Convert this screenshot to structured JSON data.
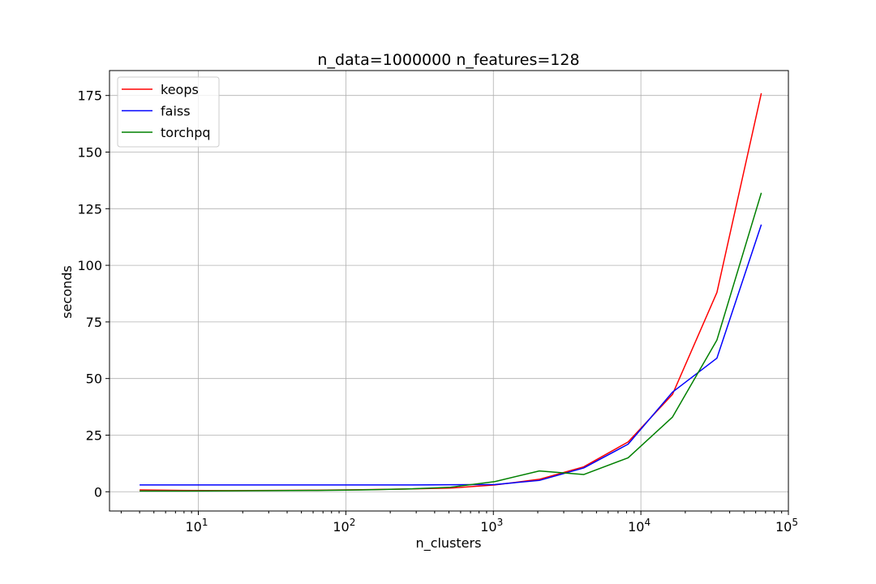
{
  "chart_data": {
    "type": "line",
    "title": "n_data=1000000 n_features=128",
    "xlabel": "n_clusters",
    "ylabel": "seconds",
    "xscale": "log",
    "xlim": [
      2.5,
      100000
    ],
    "ylim": [
      -8.5,
      186
    ],
    "grid": true,
    "legend_position": "top-left",
    "x": [
      4,
      8,
      16,
      32,
      64,
      128,
      256,
      512,
      1024,
      2048,
      4096,
      8192,
      16384,
      32768,
      65536
    ],
    "x_tick_labels": [
      {
        "base": "10",
        "exp": "1",
        "value": 10
      },
      {
        "base": "10",
        "exp": "2",
        "value": 100
      },
      {
        "base": "10",
        "exp": "3",
        "value": 1000
      },
      {
        "base": "10",
        "exp": "4",
        "value": 10000
      },
      {
        "base": "10",
        "exp": "5",
        "value": 100000
      }
    ],
    "y_ticks": [
      0,
      25,
      50,
      75,
      100,
      125,
      150,
      175
    ],
    "series": [
      {
        "name": "keops",
        "color": "#ff0000",
        "values": [
          0.8,
          0.6,
          0.5,
          0.6,
          0.7,
          0.9,
          1.2,
          1.6,
          3.0,
          5.5,
          11.0,
          22.0,
          43.0,
          88.0,
          176.0
        ]
      },
      {
        "name": "faiss",
        "color": "#0000ff",
        "values": [
          3.0,
          3.0,
          3.0,
          3.0,
          3.0,
          3.0,
          3.0,
          3.1,
          3.2,
          5.0,
          10.5,
          21.0,
          44.0,
          59.0,
          118.0
        ]
      },
      {
        "name": "torchpq",
        "color": "#008000",
        "values": [
          0.3,
          0.3,
          0.4,
          0.5,
          0.6,
          0.8,
          1.2,
          2.0,
          4.5,
          9.2,
          7.6,
          15.0,
          33.0,
          67.0,
          132.0
        ]
      }
    ]
  }
}
